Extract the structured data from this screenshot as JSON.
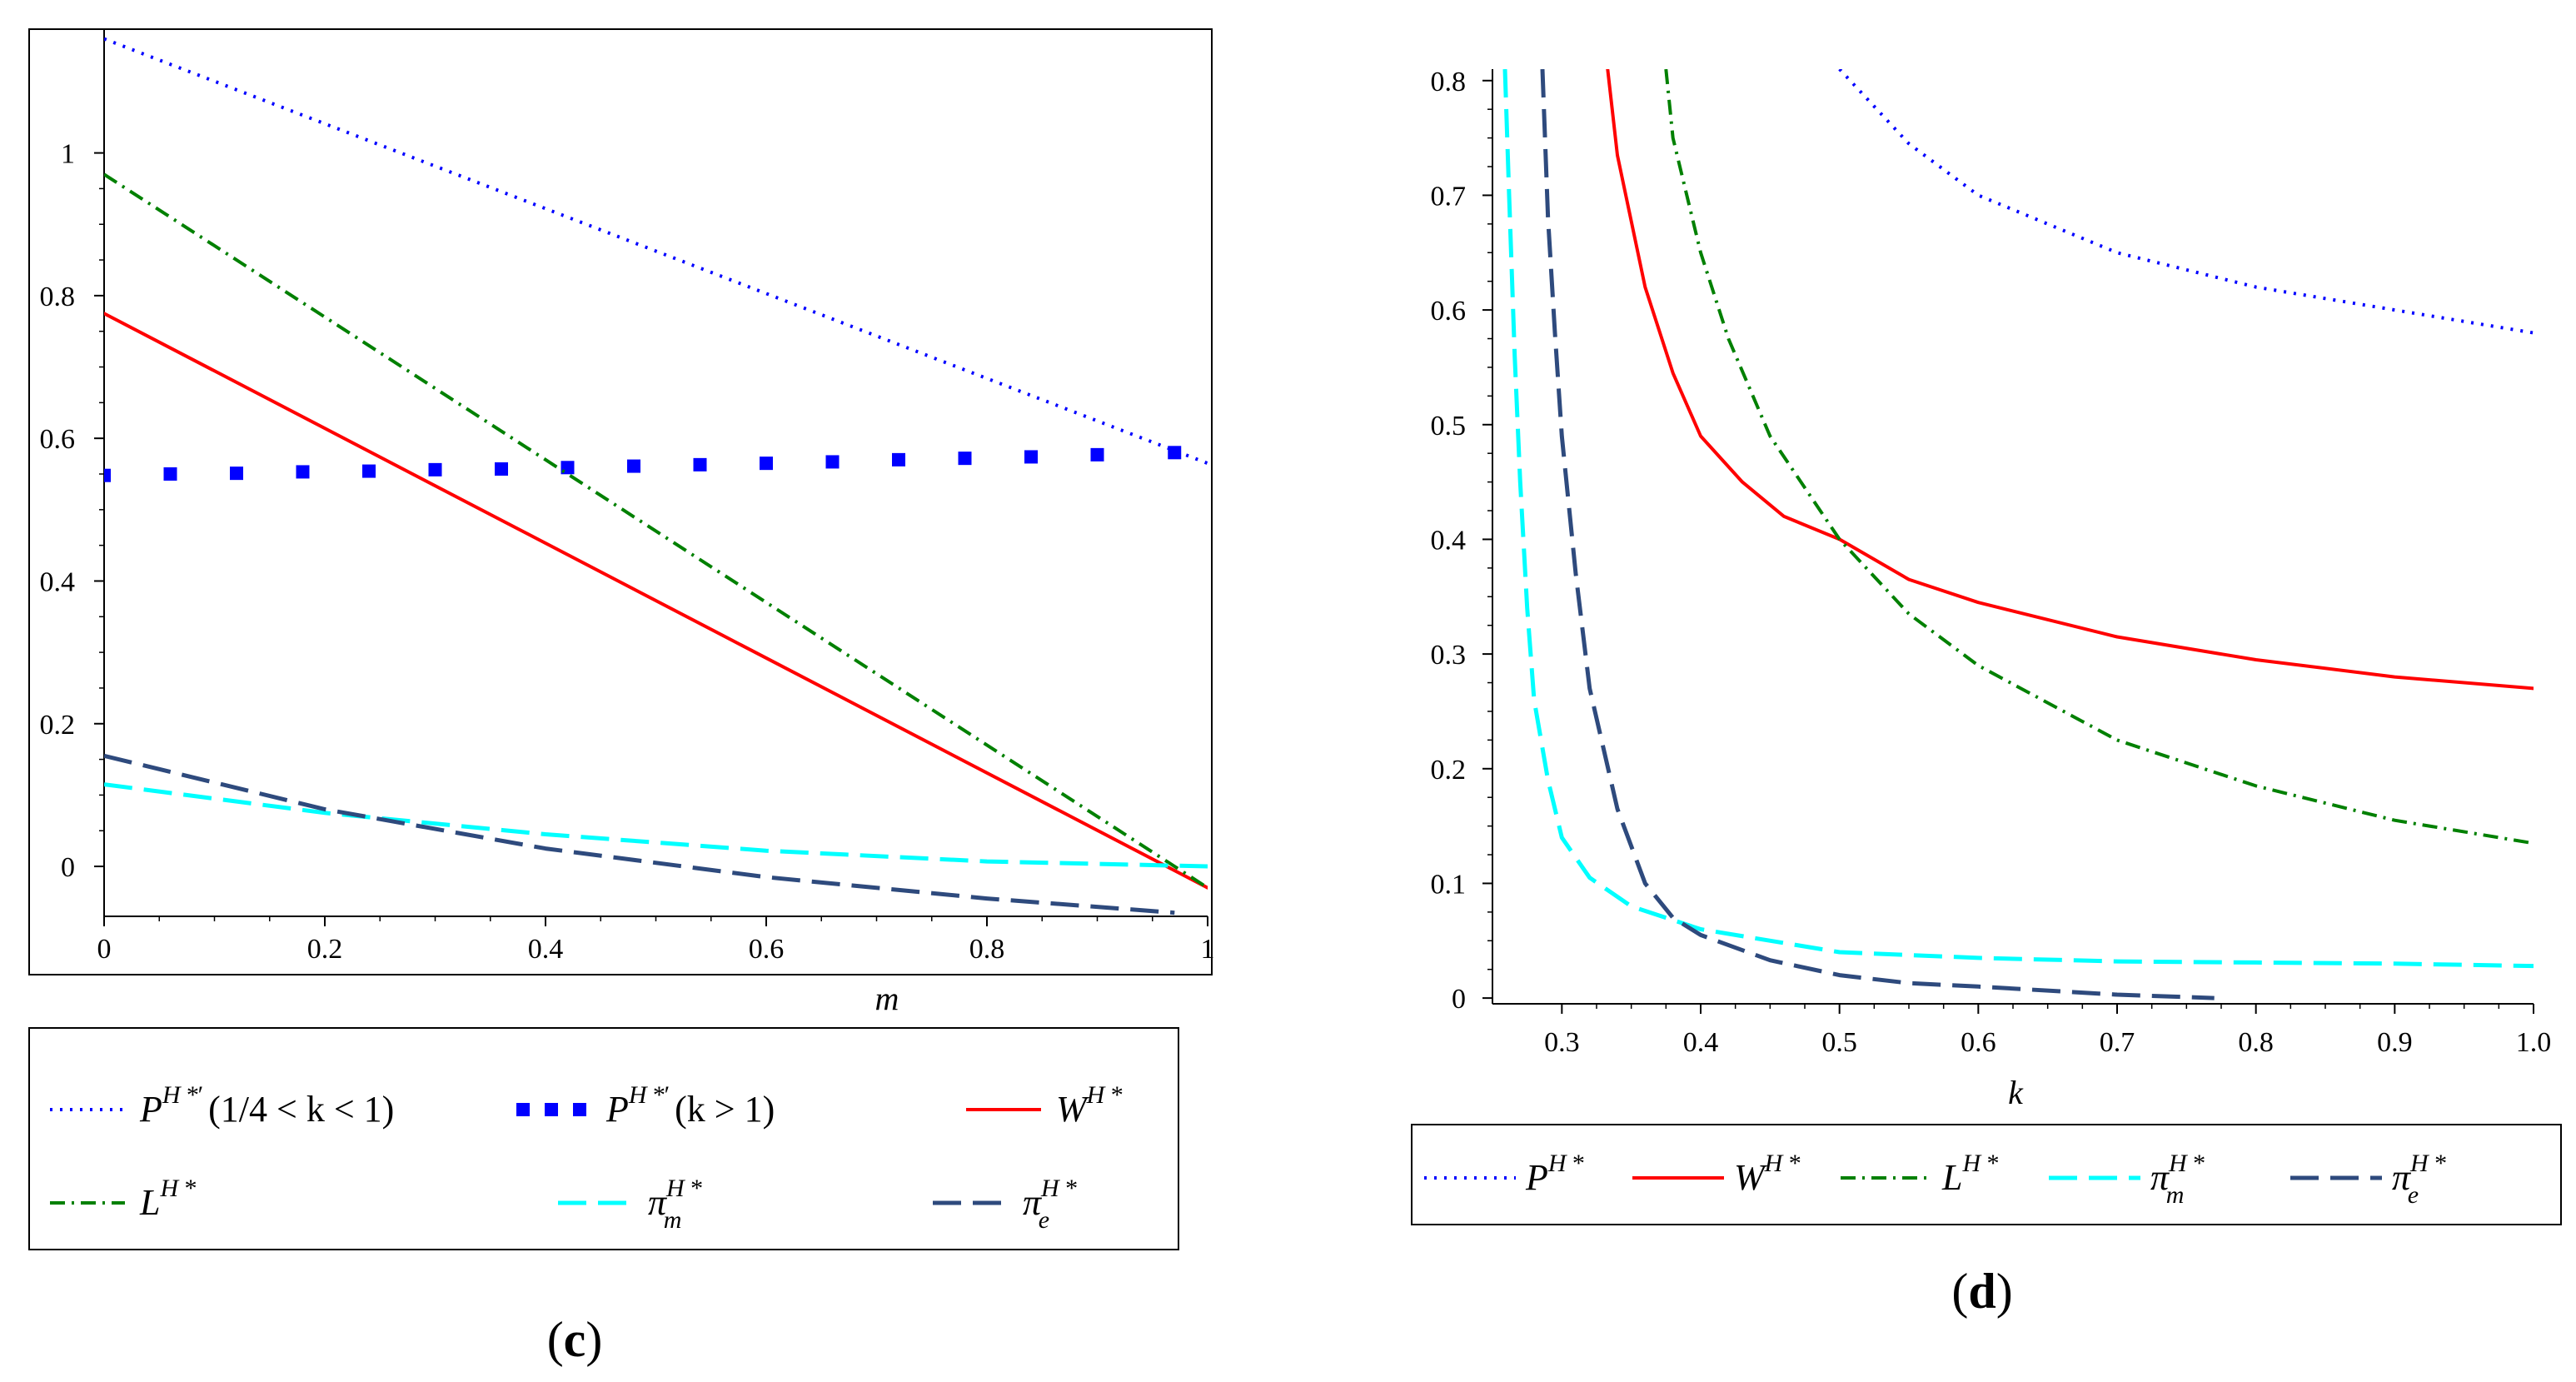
{
  "chart_data": [
    {
      "panel": "c",
      "type": "line",
      "title": "",
      "xlabel": "m",
      "ylabel": "",
      "xlim": [
        0,
        1
      ],
      "ylim": [
        -0.07,
        1.17
      ],
      "xticks": [
        "0",
        "0.2",
        "0.4",
        "0.6",
        "0.8",
        "1"
      ],
      "xtick_values": [
        0,
        0.2,
        0.4,
        0.6,
        0.8,
        1
      ],
      "yticks": [
        "0",
        "0.2",
        "0.4",
        "0.6",
        "0.8",
        "1"
      ],
      "ytick_values": [
        0,
        0.2,
        0.4,
        0.6,
        0.8,
        1
      ],
      "caption_letter": "c",
      "series": [
        {
          "name": "P_H_low",
          "color": "#0000ff",
          "style": "dotted",
          "legend": {
            "sym": "P",
            "sup": "H *",
            "sup2": "′",
            "cond": "(1/4 < k < 1)"
          },
          "x": [
            0,
            1
          ],
          "y": [
            1.16,
            0.565
          ]
        },
        {
          "name": "P_H_high",
          "color": "#0000ff",
          "style": "squares",
          "legend": {
            "sym": "P",
            "sup": "H *",
            "sup2": "′",
            "cond": "(k > 1)"
          },
          "x": [
            0,
            0.06,
            0.12,
            0.18,
            0.24,
            0.3,
            0.36,
            0.42,
            0.48,
            0.54,
            0.6,
            0.66,
            0.72,
            0.78,
            0.84,
            0.9,
            0.97
          ],
          "y": [
            0.548,
            0.55,
            0.551,
            0.553,
            0.554,
            0.556,
            0.557,
            0.559,
            0.561,
            0.563,
            0.565,
            0.567,
            0.57,
            0.572,
            0.574,
            0.577,
            0.58
          ]
        },
        {
          "name": "W_H",
          "color": "#ff0000",
          "style": "solid",
          "legend": {
            "sym": "W",
            "sup": "H *"
          },
          "x": [
            0,
            1
          ],
          "y": [
            0.775,
            -0.03
          ]
        },
        {
          "name": "L_H",
          "color": "#008000",
          "style": "dashdot",
          "legend": {
            "sym": "L",
            "sup": "H *"
          },
          "x": [
            0,
            1
          ],
          "y": [
            0.97,
            -0.03
          ]
        },
        {
          "name": "pi_m_H",
          "color": "#00ffff",
          "style": "longdash",
          "legend": {
            "sym": "π",
            "sup": "H *",
            "sub": "m"
          },
          "x": [
            0,
            0.2,
            0.4,
            0.6,
            0.8,
            1
          ],
          "y": [
            0.115,
            0.075,
            0.045,
            0.022,
            0.007,
            0.0
          ]
        },
        {
          "name": "pi_e_H",
          "color": "#2e4a7d",
          "style": "longdash",
          "legend": {
            "sym": "π",
            "sup": "H *",
            "sub": "e"
          },
          "x": [
            0,
            0.2,
            0.4,
            0.6,
            0.8,
            0.97
          ],
          "y": [
            0.155,
            0.08,
            0.025,
            -0.015,
            -0.045,
            -0.065
          ]
        }
      ]
    },
    {
      "panel": "d",
      "type": "line",
      "title": "",
      "xlabel": "k",
      "ylabel": "",
      "xlim": [
        0.25,
        1.0
      ],
      "ylim": [
        -0.005,
        0.81
      ],
      "xticks": [
        "0.3",
        "0.4",
        "0.5",
        "0.6",
        "0.7",
        "0.8",
        "0.9",
        "1.0"
      ],
      "xtick_values": [
        0.3,
        0.4,
        0.5,
        0.6,
        0.7,
        0.8,
        0.9,
        1.0
      ],
      "yticks": [
        "0",
        "0.1",
        "0.2",
        "0.3",
        "0.4",
        "0.5",
        "0.6",
        "0.7",
        "0.8"
      ],
      "ytick_values": [
        0,
        0.1,
        0.2,
        0.3,
        0.4,
        0.5,
        0.6,
        0.7,
        0.8
      ],
      "caption_letter": "d",
      "series": [
        {
          "name": "P_H",
          "color": "#0000ff",
          "style": "dotted",
          "legend": {
            "sym": "P",
            "sup": "H *"
          },
          "x": [
            0.5,
            0.55,
            0.6,
            0.7,
            0.8,
            0.9,
            1.0
          ],
          "y": [
            0.81,
            0.745,
            0.7,
            0.65,
            0.62,
            0.6,
            0.58
          ]
        },
        {
          "name": "W_H",
          "color": "#ff0000",
          "style": "solid",
          "legend": {
            "sym": "W",
            "sup": "H *"
          },
          "x": [
            0.333,
            0.34,
            0.36,
            0.38,
            0.4,
            0.43,
            0.46,
            0.5,
            0.55,
            0.6,
            0.7,
            0.8,
            0.9,
            1.0
          ],
          "y": [
            0.81,
            0.735,
            0.62,
            0.545,
            0.49,
            0.45,
            0.42,
            0.4,
            0.365,
            0.345,
            0.315,
            0.295,
            0.28,
            0.27
          ]
        },
        {
          "name": "L_H",
          "color": "#008000",
          "style": "dashdot",
          "legend": {
            "sym": "L",
            "sup": "H *"
          },
          "x": [
            0.375,
            0.38,
            0.4,
            0.42,
            0.45,
            0.5,
            0.55,
            0.6,
            0.7,
            0.8,
            0.9,
            1.0
          ],
          "y": [
            0.81,
            0.75,
            0.65,
            0.575,
            0.49,
            0.4,
            0.335,
            0.29,
            0.225,
            0.185,
            0.155,
            0.135
          ]
        },
        {
          "name": "pi_m_H",
          "color": "#00ffff",
          "style": "longdash",
          "legend": {
            "sym": "π",
            "sup": "H *",
            "sub": "m"
          },
          "x": [
            0.259,
            0.262,
            0.266,
            0.27,
            0.275,
            0.28,
            0.29,
            0.3,
            0.32,
            0.35,
            0.4,
            0.5,
            0.6,
            0.7,
            0.8,
            0.9,
            1.0
          ],
          "y": [
            0.81,
            0.7,
            0.56,
            0.45,
            0.34,
            0.26,
            0.19,
            0.14,
            0.105,
            0.08,
            0.06,
            0.04,
            0.035,
            0.032,
            0.031,
            0.03,
            0.028
          ]
        },
        {
          "name": "pi_e_H",
          "color": "#2e4a7d",
          "style": "longdash",
          "legend": {
            "sym": "π",
            "sup": "H *",
            "sub": "e"
          },
          "x": [
            0.286,
            0.29,
            0.295,
            0.3,
            0.31,
            0.32,
            0.34,
            0.36,
            0.38,
            0.4,
            0.45,
            0.5,
            0.55,
            0.6,
            0.7,
            0.77
          ],
          "y": [
            0.81,
            0.68,
            0.58,
            0.49,
            0.37,
            0.27,
            0.165,
            0.1,
            0.07,
            0.055,
            0.033,
            0.02,
            0.013,
            0.01,
            0.003,
            0.0
          ]
        }
      ]
    }
  ]
}
